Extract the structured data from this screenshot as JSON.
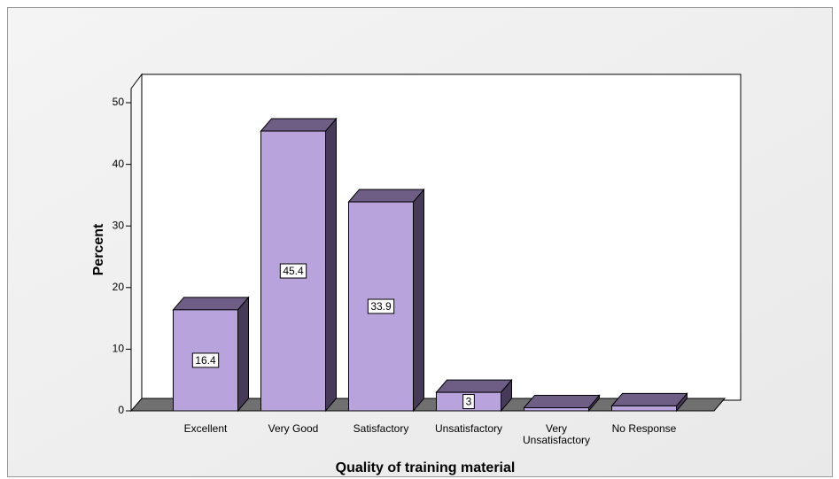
{
  "chart_data": {
    "type": "bar3d",
    "x_label": "Quality of training material",
    "y_label": "Percent",
    "categories": [
      "Excellent",
      "Very Good",
      "Satisfactory",
      "Unsatisfactory",
      "Very Unsatisfactory",
      "No Response"
    ],
    "values": [
      16.4,
      45.4,
      33.9,
      3,
      0.5,
      0.8
    ],
    "value_labels": [
      "16.4",
      "45.4",
      "33.9",
      "3",
      null,
      null
    ],
    "color": "#b8a3dc",
    "ylim": [
      0,
      50
    ],
    "yticks": [
      0,
      10,
      20,
      30,
      40,
      50
    ]
  }
}
